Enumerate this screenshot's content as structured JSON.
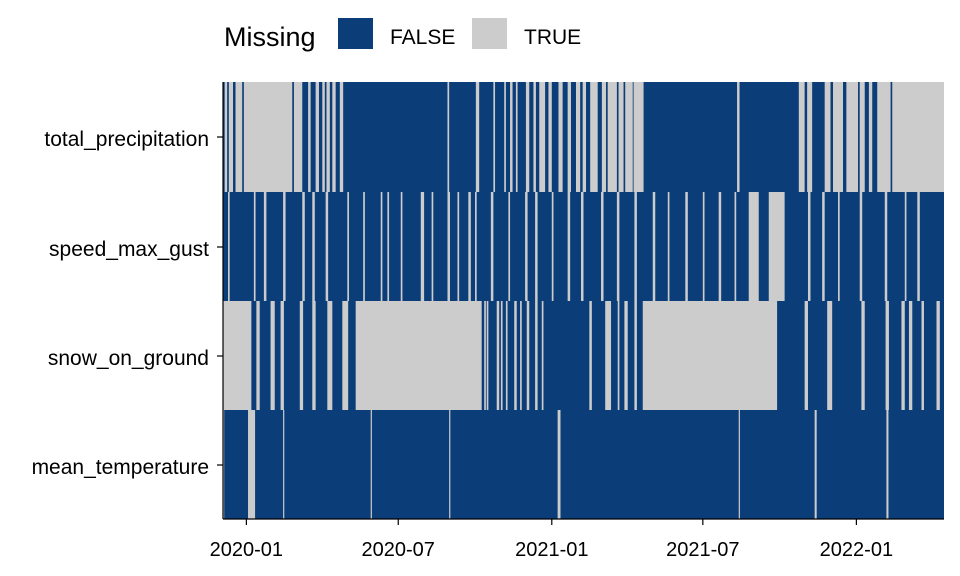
{
  "chart_data": {
    "type": "heatmap",
    "title": "",
    "xlabel": "",
    "ylabel": "",
    "legend": {
      "title": "Missing",
      "position": "top",
      "entries": [
        {
          "label": "FALSE",
          "color": "#0b3d78"
        },
        {
          "label": "TRUE",
          "color": "#cccccc"
        }
      ]
    },
    "xlim": [
      "2019-12-04",
      "2022-04-15"
    ],
    "x_ticks": [
      "2020-01",
      "2020-07",
      "2021-01",
      "2021-07",
      "2022-01"
    ],
    "variables": [
      "total_precipitation",
      "speed_max_gust",
      "snow_on_ground",
      "mean_temperature"
    ],
    "series": [
      {
        "variable": "mean_temperature",
        "missing_days": [
          "2019-12-04",
          "2020-01-03",
          "2020-01-04",
          "2020-01-05",
          "2020-01-06",
          "2020-01-07",
          "2020-01-08",
          "2020-01-09",
          "2020-01-10",
          "2020-02-14",
          "2020-05-29",
          "2020-08-31",
          "2021-01-08",
          "2021-01-09",
          "2021-01-10",
          "2021-08-13",
          "2021-11-12",
          "2021-11-13",
          "2022-02-06",
          "2022-02-07"
        ]
      },
      {
        "variable": "snow_on_ground",
        "missing_days": {
          "mode": "intervals",
          "note": "visible gray spans",
          "spans": [
            [
              "2019-12-04",
              "2020-01-06"
            ],
            [
              "2020-01-13",
              "2020-01-16"
            ],
            [
              "2020-01-30",
              "2020-02-03"
            ],
            [
              "2020-02-11",
              "2020-02-14"
            ],
            [
              "2020-03-05",
              "2020-03-08"
            ],
            [
              "2020-03-20",
              "2020-03-23"
            ],
            [
              "2020-04-07",
              "2020-04-12"
            ],
            [
              "2020-04-25",
              "2020-05-01"
            ],
            [
              "2020-05-11",
              "2020-10-08"
            ],
            [
              "2020-10-12",
              "2020-10-13"
            ],
            [
              "2020-10-15",
              "2020-10-16"
            ],
            [
              "2020-10-27",
              "2020-10-29"
            ],
            [
              "2020-11-01",
              "2020-11-02"
            ],
            [
              "2020-11-07",
              "2020-11-08"
            ],
            [
              "2020-11-17",
              "2020-11-19"
            ],
            [
              "2020-11-24",
              "2020-11-25"
            ],
            [
              "2020-12-02",
              "2020-12-04"
            ],
            [
              "2020-12-12",
              "2020-12-14"
            ],
            [
              "2020-12-20",
              "2020-12-21"
            ],
            [
              "2021-02-15",
              "2021-02-17"
            ],
            [
              "2021-03-06",
              "2021-03-12"
            ],
            [
              "2021-03-21",
              "2021-03-22"
            ],
            [
              "2021-03-29",
              "2021-04-01"
            ],
            [
              "2021-04-10",
              "2021-04-12"
            ],
            [
              "2021-04-20",
              "2021-09-27"
            ],
            [
              "2021-10-31",
              "2021-11-03"
            ],
            [
              "2021-11-27",
              "2021-12-02"
            ],
            [
              "2022-01-07",
              "2022-01-10"
            ],
            [
              "2022-02-05",
              "2022-02-08"
            ],
            [
              "2022-02-24",
              "2022-02-27"
            ],
            [
              "2022-03-05",
              "2022-03-08"
            ],
            [
              "2022-03-20",
              "2022-03-22"
            ],
            [
              "2022-04-07",
              "2022-04-10"
            ]
          ]
        }
      },
      {
        "variable": "speed_max_gust",
        "missing_days": {
          "mode": "intervals",
          "note": "visible gray spans",
          "spans": [
            [
              "2019-12-10",
              "2019-12-11"
            ],
            [
              "2020-01-10",
              "2020-01-11"
            ],
            [
              "2020-01-22",
              "2020-01-24"
            ],
            [
              "2020-02-14",
              "2020-02-16"
            ],
            [
              "2020-03-08",
              "2020-03-10"
            ],
            [
              "2020-03-20",
              "2020-03-22"
            ],
            [
              "2020-04-05",
              "2020-04-07"
            ],
            [
              "2020-05-01",
              "2020-05-02"
            ],
            [
              "2020-05-20",
              "2020-05-21"
            ],
            [
              "2020-06-10",
              "2020-06-11"
            ],
            [
              "2020-06-18",
              "2020-06-19"
            ],
            [
              "2020-07-04",
              "2020-07-05"
            ],
            [
              "2020-07-28",
              "2020-07-31"
            ],
            [
              "2020-08-10",
              "2020-08-11"
            ],
            [
              "2020-08-29",
              "2020-08-31"
            ],
            [
              "2020-09-10",
              "2020-09-11"
            ],
            [
              "2020-09-23",
              "2020-09-25"
            ],
            [
              "2020-10-01",
              "2020-10-02"
            ],
            [
              "2020-10-20",
              "2020-10-22"
            ],
            [
              "2020-11-10",
              "2020-11-11"
            ],
            [
              "2020-11-30",
              "2020-12-02"
            ],
            [
              "2020-12-12",
              "2020-12-14"
            ],
            [
              "2021-01-01",
              "2021-01-02"
            ],
            [
              "2021-01-20",
              "2021-01-22"
            ],
            [
              "2021-02-05",
              "2021-02-07"
            ],
            [
              "2021-03-01",
              "2021-03-03"
            ],
            [
              "2021-03-20",
              "2021-03-22"
            ],
            [
              "2021-04-10",
              "2021-04-12"
            ],
            [
              "2021-05-02",
              "2021-05-04"
            ],
            [
              "2021-05-20",
              "2021-05-21"
            ],
            [
              "2021-06-10",
              "2021-06-12"
            ],
            [
              "2021-07-01",
              "2021-07-02"
            ],
            [
              "2021-07-20",
              "2021-07-22"
            ],
            [
              "2021-08-08",
              "2021-08-09"
            ],
            [
              "2021-08-25",
              "2021-09-05"
            ],
            [
              "2021-09-18",
              "2021-10-06"
            ],
            [
              "2021-11-04",
              "2021-11-06"
            ],
            [
              "2021-11-21",
              "2021-11-23"
            ],
            [
              "2021-12-10",
              "2021-12-11"
            ],
            [
              "2022-01-05",
              "2022-01-07"
            ],
            [
              "2022-02-04",
              "2022-02-06"
            ],
            [
              "2022-02-28",
              "2022-03-01"
            ],
            [
              "2022-03-15",
              "2022-03-17"
            ]
          ]
        }
      },
      {
        "variable": "total_precipitation",
        "missing_days": {
          "mode": "intervals",
          "note": "visible gray spans",
          "spans": [
            [
              "2019-12-06",
              "2019-12-08"
            ],
            [
              "2019-12-11",
              "2019-12-15"
            ],
            [
              "2019-12-19",
              "2019-12-26"
            ],
            [
              "2019-12-29",
              "2020-02-24"
            ],
            [
              "2020-02-27",
              "2020-03-07"
            ],
            [
              "2020-03-15",
              "2020-03-17"
            ],
            [
              "2020-03-24",
              "2020-03-27"
            ],
            [
              "2020-04-01",
              "2020-04-03"
            ],
            [
              "2020-04-06",
              "2020-04-09"
            ],
            [
              "2020-04-13",
              "2020-04-16"
            ],
            [
              "2020-04-22",
              "2020-04-25"
            ],
            [
              "2020-08-29",
              "2020-08-30"
            ],
            [
              "2020-10-02",
              "2020-10-05"
            ],
            [
              "2020-10-23",
              "2020-10-24"
            ],
            [
              "2020-11-05",
              "2020-11-06"
            ],
            [
              "2020-11-12",
              "2020-11-14"
            ],
            [
              "2020-11-19",
              "2020-11-20"
            ],
            [
              "2020-12-01",
              "2020-12-04"
            ],
            [
              "2020-12-10",
              "2020-12-12"
            ],
            [
              "2020-12-17",
              "2020-12-23"
            ],
            [
              "2020-12-28",
              "2020-12-31"
            ],
            [
              "2021-01-09",
              "2021-01-13"
            ],
            [
              "2021-01-20",
              "2021-01-23"
            ],
            [
              "2021-01-30",
              "2021-02-03"
            ],
            [
              "2021-02-07",
              "2021-02-10"
            ],
            [
              "2021-02-16",
              "2021-02-24"
            ],
            [
              "2021-03-02",
              "2021-03-06"
            ],
            [
              "2021-03-09",
              "2021-03-19"
            ],
            [
              "2021-03-22",
              "2021-03-27"
            ],
            [
              "2021-03-30",
              "2021-04-07"
            ],
            [
              "2021-04-09",
              "2021-04-20"
            ],
            [
              "2021-08-11",
              "2021-08-13"
            ],
            [
              "2021-10-24",
              "2021-10-30"
            ],
            [
              "2021-11-03",
              "2021-11-08"
            ],
            [
              "2021-11-24",
              "2021-11-30"
            ],
            [
              "2021-12-04",
              "2021-12-15"
            ],
            [
              "2021-12-20",
              "2022-01-02"
            ],
            [
              "2022-01-05",
              "2022-01-10"
            ],
            [
              "2022-01-16",
              "2022-01-19"
            ],
            [
              "2022-01-26",
              "2022-02-10"
            ],
            [
              "2022-02-13",
              "2022-04-15"
            ]
          ]
        }
      }
    ]
  }
}
